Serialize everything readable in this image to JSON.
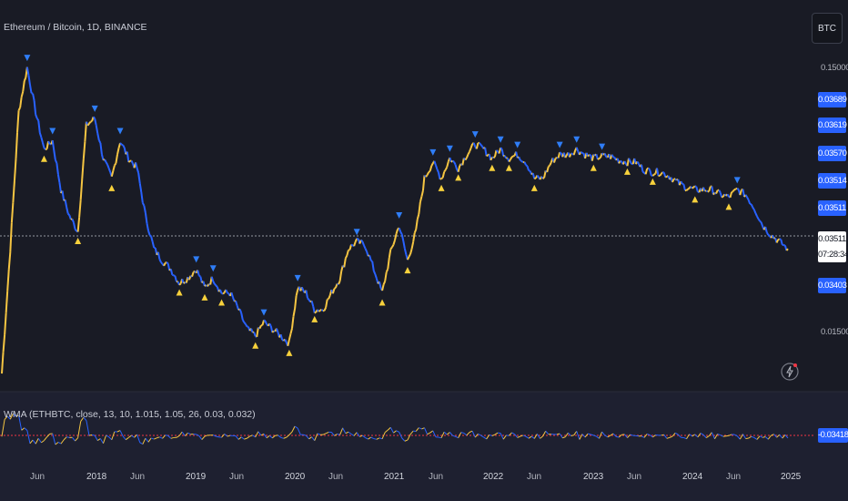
{
  "header": {
    "symbol_title": "Ethereum / Bitcoin, 1D, BINANCE",
    "currency_button": "BTC"
  },
  "indicator": {
    "label": "WMA (ETHBTC, close, 13, 10, 1.015, 1.05, 26, 0.03, 0.032)",
    "last_value": "-0.03418"
  },
  "price_axis": {
    "labels": [
      "0.15000",
      "0.01500"
    ],
    "marker_labels": [
      "0.03689",
      "0.03619",
      "0.03570",
      "0.03514",
      "0.03511",
      "0.03403"
    ],
    "current_price": "0.03511",
    "countdown": "07:28:34"
  },
  "time_axis": [
    "Jun",
    "2018",
    "Jun",
    "2019",
    "Jun",
    "2020",
    "Jun",
    "2021",
    "Jun",
    "2022",
    "Jun",
    "2023",
    "Jun",
    "2024",
    "Jun",
    "2025"
  ],
  "colors": {
    "background": "#1a1c25",
    "up_series": "#f5c542",
    "down_series": "#2962ff",
    "marker_up": "#f7d13c",
    "marker_down": "#2f7df6",
    "last_price_line": "#9598a1",
    "indicator_zero_line": "#f23645"
  },
  "chart_data": {
    "type": "line",
    "title": "Ethereum / Bitcoin, 1D, BINANCE",
    "y_scale": "log",
    "x": [
      "2017-03",
      "2017-04",
      "2017-05",
      "2017-06",
      "2017-07",
      "2017-08",
      "2017-09",
      "2017-10",
      "2017-11",
      "2017-12",
      "2018-01",
      "2018-02",
      "2018-03",
      "2018-04",
      "2018-05",
      "2018-06",
      "2018-07",
      "2018-08",
      "2018-09",
      "2018-10",
      "2018-11",
      "2018-12",
      "2019-01",
      "2019-02",
      "2019-03",
      "2019-04",
      "2019-05",
      "2019-06",
      "2019-07",
      "2019-08",
      "2019-09",
      "2019-10",
      "2019-11",
      "2019-12",
      "2020-01",
      "2020-02",
      "2020-03",
      "2020-04",
      "2020-05",
      "2020-06",
      "2020-07",
      "2020-08",
      "2020-09",
      "2020-10",
      "2020-11",
      "2020-12",
      "2021-01",
      "2021-02",
      "2021-03",
      "2021-04",
      "2021-05",
      "2021-06",
      "2021-07",
      "2021-08",
      "2021-09",
      "2021-10",
      "2021-11",
      "2021-12",
      "2022-01",
      "2022-02",
      "2022-03",
      "2022-04",
      "2022-05",
      "2022-06",
      "2022-07",
      "2022-08",
      "2022-09",
      "2022-10",
      "2022-11",
      "2022-12",
      "2023-01",
      "2023-02",
      "2023-03",
      "2023-04",
      "2023-05",
      "2023-06",
      "2023-07",
      "2023-08",
      "2023-09",
      "2023-10",
      "2023-11",
      "2023-12",
      "2024-01",
      "2024-02",
      "2024-03",
      "2024-04",
      "2024-05",
      "2024-06",
      "2024-07",
      "2024-08",
      "2024-09",
      "2024-10",
      "2024-11",
      "2024-12"
    ],
    "series": [
      {
        "values": [
          0.0135,
          0.035,
          0.1,
          0.14,
          0.1,
          0.075,
          0.08,
          0.055,
          0.045,
          0.04,
          0.09,
          0.095,
          0.07,
          0.06,
          0.08,
          0.07,
          0.065,
          0.045,
          0.035,
          0.032,
          0.03,
          0.027,
          0.028,
          0.03,
          0.026,
          0.028,
          0.025,
          0.025,
          0.022,
          0.019,
          0.018,
          0.02,
          0.019,
          0.018,
          0.017,
          0.026,
          0.025,
          0.022,
          0.022,
          0.025,
          0.028,
          0.035,
          0.037,
          0.036,
          0.03,
          0.025,
          0.034,
          0.042,
          0.032,
          0.04,
          0.06,
          0.068,
          0.06,
          0.07,
          0.065,
          0.072,
          0.078,
          0.075,
          0.07,
          0.075,
          0.07,
          0.072,
          0.068,
          0.06,
          0.06,
          0.068,
          0.072,
          0.072,
          0.075,
          0.072,
          0.07,
          0.071,
          0.071,
          0.069,
          0.068,
          0.068,
          0.064,
          0.063,
          0.063,
          0.061,
          0.058,
          0.056,
          0.055,
          0.055,
          0.055,
          0.053,
          0.052,
          0.055,
          0.053,
          0.048,
          0.042,
          0.039,
          0.037,
          0.035
        ]
      }
    ],
    "ylim": [
      0.0135,
      0.16
    ]
  }
}
